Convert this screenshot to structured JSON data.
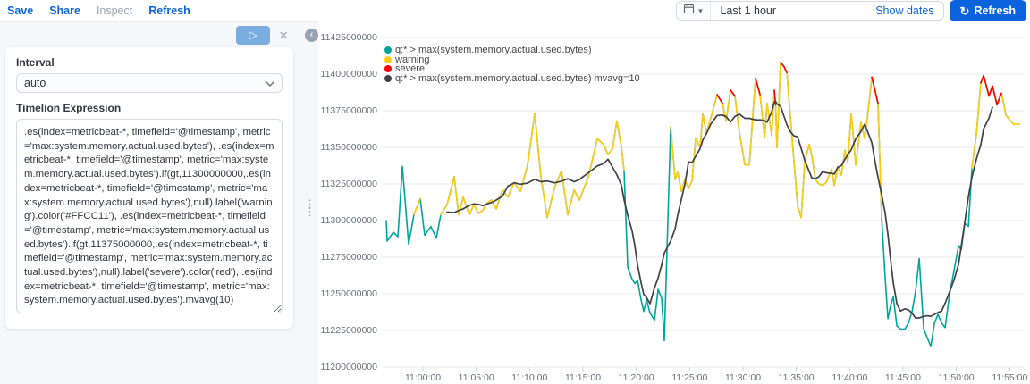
{
  "toolbar": {
    "items": [
      {
        "label": "Save",
        "enabled": true
      },
      {
        "label": "Share",
        "enabled": true
      },
      {
        "label": "Inspect",
        "enabled": false
      },
      {
        "label": "Refresh",
        "enabled": true
      }
    ]
  },
  "timepicker": {
    "calendar_icon": "calendar-icon",
    "chevron_icon": "chevron-down-icon",
    "value": "Last 1 hour",
    "show_dates_label": "Show dates",
    "refresh_icon": "refresh-icon",
    "refresh_label": "Refresh"
  },
  "editor": {
    "play_icon": "play-icon",
    "close_icon": "close-icon",
    "collapse_icon": "collapse-left-icon",
    "drag_handle_icon": "grab-handle-icon",
    "interval_label": "Interval",
    "interval_value": "auto",
    "expression_label": "Timelion Expression",
    "expression": ".es(index=metricbeat-*, timefield='@timestamp', metric='max:system.memory.actual.used.bytes'), .es(index=metricbeat-*, timefield='@timestamp', metric='max:system.memory.actual.used.bytes').if(gt,11300000000,.es(index=metricbeat-*, timefield='@timestamp', metric='max:system.memory.actual.used.bytes'),null).label('warning').color('#FFCC11'), .es(index=metricbeat-*, timefield='@timestamp', metric='max:system.memory.actual.used.bytes').if(gt,11375000000,.es(index=metricbeat-*, timefield='@timestamp', metric='max:system.memory.actual.used.bytes'),null).label('severe').color('red'), .es(index=metricbeat-*, timefield='@timestamp', metric='max:system.memory.actual.used.bytes').mvavg(10)"
  },
  "chart_data": {
    "type": "line",
    "x_axis": {
      "unit": "time",
      "tick_labels": [
        "11:00:00",
        "11:05:00",
        "11:10:00",
        "11:15:00",
        "11:20:00",
        "11:25:00",
        "11:30:00",
        "11:35:00",
        "11:40:00",
        "11:45:00",
        "11:50:00",
        "11:55:00"
      ],
      "tick_minutes_after_11_00": [
        0,
        5,
        10,
        15,
        20,
        25,
        30,
        35,
        40,
        45,
        50,
        55
      ]
    },
    "y_axis": {
      "unit": "bytes",
      "tick_values": [
        11200000000,
        11225000000,
        11250000000,
        11275000000,
        11300000000,
        11325000000,
        11350000000,
        11375000000,
        11400000000,
        11425000000
      ]
    },
    "legend": [
      {
        "label": "q:* > max(system.memory.actual.used.bytes)",
        "color": "#00A69B"
      },
      {
        "label": "warning",
        "color": "#FFCC11"
      },
      {
        "label": "severe",
        "color": "#FF0000"
      },
      {
        "label": "q:* > max(system.memory.actual.used.bytes) mvavg=10",
        "color": "#414146"
      }
    ],
    "derived_series": {
      "warning_threshold_bytes": 11300000000,
      "severe_threshold_bytes": 11375000000,
      "moving_average_window": 10,
      "moving_average_position": "center"
    },
    "value_scale_to_bytes": 1000000,
    "points": [
      [
        -3.44,
        11300
      ],
      [
        -3.35,
        11286
      ],
      [
        -2.77,
        11292
      ],
      [
        -2.35,
        11289
      ],
      [
        -1.93,
        11337
      ],
      [
        -1.34,
        11284
      ],
      [
        -0.84,
        11304
      ],
      [
        -0.25,
        11315
      ],
      [
        0.17,
        11290
      ],
      [
        0.75,
        11296
      ],
      [
        1.26,
        11288
      ],
      [
        1.68,
        11304
      ],
      [
        2.26,
        11311
      ],
      [
        2.93,
        11330
      ],
      [
        3.35,
        11304
      ],
      [
        3.77,
        11316
      ],
      [
        4.36,
        11304
      ],
      [
        4.78,
        11311
      ],
      [
        5.2,
        11305
      ],
      [
        5.62,
        11307
      ],
      [
        6.03,
        11312
      ],
      [
        6.45,
        11314
      ],
      [
        6.87,
        11308
      ],
      [
        7.46,
        11321
      ],
      [
        7.96,
        11316
      ],
      [
        8.55,
        11326
      ],
      [
        9.14,
        11320
      ],
      [
        9.81,
        11338
      ],
      [
        10.48,
        11373
      ],
      [
        11.06,
        11330
      ],
      [
        11.65,
        11302
      ],
      [
        12.32,
        11322
      ],
      [
        12.99,
        11334
      ],
      [
        13.58,
        11304
      ],
      [
        14.17,
        11321
      ],
      [
        14.67,
        11314
      ],
      [
        15.51,
        11330
      ],
      [
        16.35,
        11356
      ],
      [
        16.93,
        11352
      ],
      [
        17.35,
        11345
      ],
      [
        17.77,
        11349
      ],
      [
        18.19,
        11368
      ],
      [
        18.61,
        11350
      ],
      [
        18.86,
        11334
      ],
      [
        19.2,
        11268
      ],
      [
        19.61,
        11260
      ],
      [
        19.87,
        11257
      ],
      [
        20.12,
        11259
      ],
      [
        20.45,
        11246
      ],
      [
        20.7,
        11238
      ],
      [
        20.96,
        11246
      ],
      [
        21.29,
        11237
      ],
      [
        21.71,
        11232
      ],
      [
        22.05,
        11253
      ],
      [
        22.38,
        11247
      ],
      [
        22.63,
        11218
      ],
      [
        23.22,
        11364
      ],
      [
        23.64,
        11328
      ],
      [
        23.89,
        11333
      ],
      [
        24.22,
        11320
      ],
      [
        24.56,
        11328
      ],
      [
        24.9,
        11322
      ],
      [
        25.23,
        11327
      ],
      [
        25.57,
        11356
      ],
      [
        25.99,
        11350
      ],
      [
        26.24,
        11373
      ],
      [
        26.57,
        11360
      ],
      [
        26.99,
        11370
      ],
      [
        27.58,
        11386
      ],
      [
        28.08,
        11380
      ],
      [
        28.42,
        11368
      ],
      [
        28.84,
        11389
      ],
      [
        29.25,
        11385
      ],
      [
        29.67,
        11360
      ],
      [
        30.18,
        11338
      ],
      [
        30.6,
        11338
      ],
      [
        31.18,
        11397
      ],
      [
        31.6,
        11386
      ],
      [
        32.02,
        11357
      ],
      [
        32.27,
        11380
      ],
      [
        32.69,
        11358
      ],
      [
        32.94,
        11389
      ],
      [
        33.06,
        11379
      ],
      [
        33.19,
        11350
      ],
      [
        33.53,
        11408
      ],
      [
        33.86,
        11405
      ],
      [
        34.12,
        11401
      ],
      [
        34.45,
        11370
      ],
      [
        34.79,
        11340
      ],
      [
        35.12,
        11310
      ],
      [
        35.46,
        11302
      ],
      [
        35.79,
        11340
      ],
      [
        36.21,
        11352
      ],
      [
        36.46,
        11344
      ],
      [
        36.8,
        11328
      ],
      [
        37.13,
        11325
      ],
      [
        37.47,
        11324
      ],
      [
        37.8,
        11326
      ],
      [
        38.31,
        11335
      ],
      [
        38.56,
        11324
      ],
      [
        38.89,
        11337
      ],
      [
        39.23,
        11331
      ],
      [
        39.56,
        11348
      ],
      [
        39.82,
        11340
      ],
      [
        40.15,
        11373
      ],
      [
        40.57,
        11338
      ],
      [
        41.07,
        11367
      ],
      [
        41.41,
        11356
      ],
      [
        41.66,
        11370
      ],
      [
        42.08,
        11398
      ],
      [
        42.41,
        11388
      ],
      [
        42.66,
        11380
      ],
      [
        43,
        11302
      ],
      [
        43.34,
        11260
      ],
      [
        43.59,
        11233
      ],
      [
        43.84,
        11242
      ],
      [
        44.09,
        11248
      ],
      [
        44.43,
        11228
      ],
      [
        44.76,
        11226
      ],
      [
        45.18,
        11226
      ],
      [
        45.52,
        11230
      ],
      [
        45.85,
        11238
      ],
      [
        46.19,
        11252
      ],
      [
        46.52,
        11274
      ],
      [
        46.94,
        11226
      ],
      [
        47.28,
        11220
      ],
      [
        47.61,
        11214
      ],
      [
        47.95,
        11230
      ],
      [
        48.28,
        11236
      ],
      [
        48.62,
        11230
      ],
      [
        48.95,
        11227
      ],
      [
        49.37,
        11250
      ],
      [
        49.79,
        11266
      ],
      [
        50.21,
        11283
      ],
      [
        50.46,
        11280
      ],
      [
        50.8,
        11298
      ],
      [
        51.13,
        11296
      ],
      [
        51.47,
        11336
      ],
      [
        51.89,
        11360
      ],
      [
        52.3,
        11394
      ],
      [
        52.56,
        11399
      ],
      [
        53.06,
        11385
      ],
      [
        53.39,
        11392
      ],
      [
        53.81,
        11379
      ],
      [
        54.23,
        11387
      ],
      [
        54.65,
        11372
      ],
      [
        54.99,
        11369
      ],
      [
        55.32,
        11366
      ],
      [
        55.91,
        11366
      ]
    ]
  }
}
